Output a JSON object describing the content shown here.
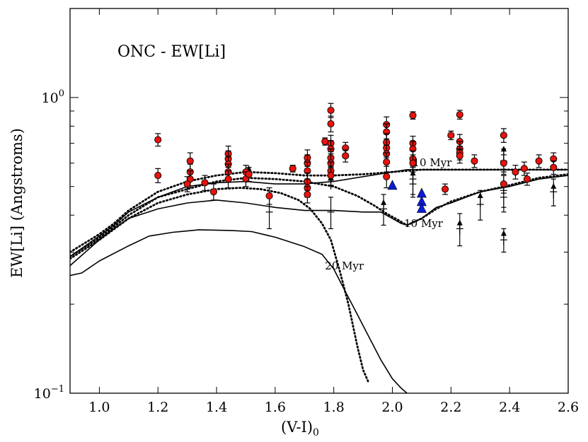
{
  "chart_data": {
    "type": "scatter",
    "title": "ONC - EW[Li]",
    "xlabel": "(V-I)",
    "xlabel_sub": "0",
    "ylabel": "EW[Li] (Angstroms)",
    "xlim": [
      0.9,
      2.6
    ],
    "ylim": [
      0.1,
      2.0
    ],
    "yscale": "log",
    "x_ticks": [
      {
        "value": 1.0,
        "label": "1.0"
      },
      {
        "value": 1.2,
        "label": "1.2"
      },
      {
        "value": 1.4,
        "label": "1.4"
      },
      {
        "value": 1.6,
        "label": "1.6"
      },
      {
        "value": 1.8,
        "label": "1.8"
      },
      {
        "value": 2.0,
        "label": "2.0"
      },
      {
        "value": 2.2,
        "label": "2.2"
      },
      {
        "value": 2.4,
        "label": "2.4"
      },
      {
        "value": 2.6,
        "label": "2.6"
      }
    ],
    "y_ticks": [
      {
        "value": 0.1,
        "base": "10",
        "exp": "−1"
      },
      {
        "value": 1.0,
        "base": "10",
        "exp": "0"
      }
    ],
    "model_curves": [
      {
        "name": "Li model 20 Myr (solid)",
        "style": "solid",
        "x": [
          0.9,
          0.94,
          1.0,
          1.1,
          1.17,
          1.25,
          1.34,
          1.45,
          1.52,
          1.6,
          1.7,
          1.76,
          1.8,
          1.84,
          1.88,
          1.92,
          1.96,
          2.0,
          2.03,
          2.05
        ],
        "y": [
          0.25,
          0.255,
          0.28,
          0.315,
          0.34,
          0.35,
          0.357,
          0.355,
          0.352,
          0.337,
          0.313,
          0.295,
          0.263,
          0.22,
          0.185,
          0.155,
          0.13,
          0.112,
          0.104,
          0.1
        ]
      },
      {
        "name": "Li model 20 Myr (dotted)",
        "style": "dotted",
        "x": [
          0.9,
          1.0,
          1.1,
          1.2,
          1.3,
          1.4,
          1.48,
          1.55,
          1.62,
          1.68,
          1.72,
          1.76,
          1.79,
          1.82,
          1.85,
          1.88,
          1.9,
          1.92
        ],
        "y": [
          0.285,
          0.33,
          0.39,
          0.44,
          0.47,
          0.49,
          0.495,
          0.49,
          0.475,
          0.45,
          0.42,
          0.375,
          0.33,
          0.26,
          0.2,
          0.145,
          0.12,
          0.108
        ]
      },
      {
        "name": "Li model 10 Myr (solid)",
        "style": "solid",
        "x": [
          0.9,
          1.0,
          1.05,
          1.1,
          1.2,
          1.3,
          1.4,
          1.5,
          1.6,
          1.7,
          1.8,
          1.9,
          1.96,
          2.0,
          2.03,
          2.05,
          2.1,
          2.15,
          2.2,
          2.3,
          2.4,
          2.5,
          2.6
        ],
        "y": [
          0.27,
          0.33,
          0.36,
          0.39,
          0.42,
          0.44,
          0.45,
          0.44,
          0.425,
          0.415,
          0.415,
          0.41,
          0.41,
          0.39,
          0.375,
          0.37,
          0.39,
          0.425,
          0.44,
          0.48,
          0.5,
          0.53,
          0.545
        ]
      },
      {
        "name": "Li model 10 Myr (dotted)",
        "style": "dotted",
        "x": [
          0.9,
          1.0,
          1.05,
          1.1,
          1.2,
          1.3,
          1.4,
          1.5,
          1.6,
          1.7,
          1.8,
          1.88,
          1.94,
          1.98,
          2.02,
          2.05,
          2.1,
          2.15,
          2.2,
          2.3,
          2.4,
          2.5,
          2.6
        ],
        "y": [
          0.29,
          0.335,
          0.365,
          0.4,
          0.46,
          0.49,
          0.52,
          0.535,
          0.53,
          0.52,
          0.5,
          0.465,
          0.43,
          0.405,
          0.385,
          0.37,
          0.39,
          0.42,
          0.445,
          0.48,
          0.505,
          0.535,
          0.55
        ]
      },
      {
        "name": "Li model 5 Myr (solid)",
        "style": "solid",
        "x": [
          0.9,
          1.0,
          1.05,
          1.1,
          1.2,
          1.3,
          1.4,
          1.5,
          1.6,
          1.7,
          1.8,
          1.9,
          2.0,
          2.05,
          2.1,
          2.2,
          2.3,
          2.4,
          2.5,
          2.6
        ],
        "y": [
          0.29,
          0.34,
          0.37,
          0.41,
          0.46,
          0.5,
          0.515,
          0.52,
          0.51,
          0.51,
          0.52,
          0.54,
          0.56,
          0.57,
          0.57,
          0.57,
          0.57,
          0.57,
          0.57,
          0.57
        ]
      },
      {
        "name": "Li model 5 Myr (dotted)",
        "style": "dotted",
        "x": [
          0.9,
          1.0,
          1.05,
          1.1,
          1.2,
          1.3,
          1.4,
          1.5,
          1.6,
          1.7,
          1.8,
          1.9,
          2.0,
          2.05,
          2.1,
          2.2,
          2.3,
          2.4,
          2.5,
          2.6
        ],
        "y": [
          0.3,
          0.345,
          0.375,
          0.415,
          0.48,
          0.52,
          0.545,
          0.56,
          0.555,
          0.545,
          0.545,
          0.55,
          0.56,
          0.565,
          0.57,
          0.57,
          0.57,
          0.57,
          0.57,
          0.57
        ]
      }
    ],
    "annotations": [
      {
        "text": "10 Myr",
        "x": 2.07,
        "y": 0.585
      },
      {
        "text": "10 Myr",
        "x": 2.04,
        "y": 0.365
      },
      {
        "text": "20 Myr",
        "x": 1.77,
        "y": 0.262
      }
    ],
    "series_detections": {
      "name": "EW[Li] detections (red circles)",
      "color": "#e8130c",
      "points": [
        {
          "x": 1.2,
          "y": 0.72,
          "err": 0.035
        },
        {
          "x": 1.2,
          "y": 0.545,
          "err": 0.03
        },
        {
          "x": 1.31,
          "y": 0.61,
          "err": 0.04
        },
        {
          "x": 1.31,
          "y": 0.56,
          "err": 0.035
        },
        {
          "x": 1.31,
          "y": 0.53,
          "err": 0.035
        },
        {
          "x": 1.3,
          "y": 0.51,
          "err": 0.03
        },
        {
          "x": 1.36,
          "y": 0.515,
          "err": 0.03
        },
        {
          "x": 1.39,
          "y": 0.48,
          "err": 0.03
        },
        {
          "x": 1.44,
          "y": 0.645,
          "err": 0.04
        },
        {
          "x": 1.44,
          "y": 0.62,
          "err": 0.04
        },
        {
          "x": 1.44,
          "y": 0.595,
          "err": 0.035
        },
        {
          "x": 1.44,
          "y": 0.56,
          "err": 0.035
        },
        {
          "x": 1.44,
          "y": 0.53,
          "err": 0.035
        },
        {
          "x": 1.5,
          "y": 0.56,
          "err": 0.03
        },
        {
          "x": 1.5,
          "y": 0.53,
          "err": 0.03
        },
        {
          "x": 1.51,
          "y": 0.55,
          "err": 0.03
        },
        {
          "x": 1.58,
          "y": 0.465,
          "err": 0.03
        },
        {
          "x": 1.66,
          "y": 0.575,
          "err": 0.015
        },
        {
          "x": 1.71,
          "y": 0.625,
          "err": 0.04
        },
        {
          "x": 1.71,
          "y": 0.6,
          "err": 0.04
        },
        {
          "x": 1.71,
          "y": 0.565,
          "err": 0.04
        },
        {
          "x": 1.71,
          "y": 0.52,
          "err": 0.035
        },
        {
          "x": 1.71,
          "y": 0.495,
          "err": 0.035
        },
        {
          "x": 1.71,
          "y": 0.47,
          "err": 0.03
        },
        {
          "x": 1.77,
          "y": 0.71,
          "err": 0.02
        },
        {
          "x": 1.79,
          "y": 0.905,
          "err": 0.05
        },
        {
          "x": 1.79,
          "y": 0.815,
          "err": 0.05
        },
        {
          "x": 1.79,
          "y": 0.7,
          "err": 0.045
        },
        {
          "x": 1.79,
          "y": 0.67,
          "err": 0.045
        },
        {
          "x": 1.79,
          "y": 0.625,
          "err": 0.045
        },
        {
          "x": 1.79,
          "y": 0.6,
          "err": 0.045
        },
        {
          "x": 1.79,
          "y": 0.565,
          "err": 0.04
        },
        {
          "x": 1.79,
          "y": 0.545,
          "err": 0.04
        },
        {
          "x": 1.84,
          "y": 0.675,
          "err": 0.03
        },
        {
          "x": 1.84,
          "y": 0.635,
          "err": 0.03
        },
        {
          "x": 1.98,
          "y": 0.81,
          "err": 0.05
        },
        {
          "x": 1.98,
          "y": 0.765,
          "err": 0.05
        },
        {
          "x": 1.98,
          "y": 0.705,
          "err": 0.05
        },
        {
          "x": 1.98,
          "y": 0.675,
          "err": 0.05
        },
        {
          "x": 1.98,
          "y": 0.645,
          "err": 0.045
        },
        {
          "x": 1.98,
          "y": 0.605,
          "err": 0.045
        },
        {
          "x": 1.98,
          "y": 0.54,
          "err": 0.045
        },
        {
          "x": 2.07,
          "y": 0.87,
          "err": 0.025
        },
        {
          "x": 2.07,
          "y": 0.7,
          "err": 0.04
        },
        {
          "x": 2.07,
          "y": 0.67,
          "err": 0.04
        },
        {
          "x": 2.07,
          "y": 0.62,
          "err": 0.04
        },
        {
          "x": 2.07,
          "y": 0.6,
          "err": 0.04
        },
        {
          "x": 2.18,
          "y": 0.49,
          "err": 0.02
        },
        {
          "x": 2.2,
          "y": 0.745,
          "err": 0.025
        },
        {
          "x": 2.23,
          "y": 0.875,
          "err": 0.03
        },
        {
          "x": 2.23,
          "y": 0.71,
          "err": 0.04
        },
        {
          "x": 2.23,
          "y": 0.67,
          "err": 0.04
        },
        {
          "x": 2.23,
          "y": 0.65,
          "err": 0.035
        },
        {
          "x": 2.23,
          "y": 0.635,
          "err": 0.035
        },
        {
          "x": 2.28,
          "y": 0.61,
          "err": 0.03
        },
        {
          "x": 2.38,
          "y": 0.745,
          "err": 0.04
        },
        {
          "x": 2.38,
          "y": 0.6,
          "err": 0.04
        },
        {
          "x": 2.38,
          "y": 0.51,
          "err": 0.035
        },
        {
          "x": 2.42,
          "y": 0.56,
          "err": 0.03
        },
        {
          "x": 2.45,
          "y": 0.575,
          "err": 0.03
        },
        {
          "x": 2.46,
          "y": 0.53,
          "err": 0.025
        },
        {
          "x": 2.5,
          "y": 0.61,
          "err": 0.03
        },
        {
          "x": 2.55,
          "y": 0.62,
          "err": 0.03
        },
        {
          "x": 2.55,
          "y": 0.58,
          "err": 0.03
        }
      ]
    },
    "series_lower_limits": {
      "name": "EW[Li] lower limits (black arrows)",
      "color": "#000000",
      "points": [
        {
          "x": 1.51,
          "y": 0.58
        },
        {
          "x": 1.79,
          "y": 0.54
        },
        {
          "x": 1.97,
          "y": 0.445
        },
        {
          "x": 2.07,
          "y": 0.6
        },
        {
          "x": 2.07,
          "y": 0.56
        },
        {
          "x": 2.23,
          "y": 0.68
        },
        {
          "x": 2.23,
          "y": 0.38
        },
        {
          "x": 2.3,
          "y": 0.47
        },
        {
          "x": 2.38,
          "y": 0.675
        },
        {
          "x": 2.38,
          "y": 0.52
        },
        {
          "x": 2.38,
          "y": 0.35
        },
        {
          "x": 2.55,
          "y": 0.505
        }
      ]
    },
    "series_blue": {
      "name": "Blue triangles",
      "color": "#0a1cd6",
      "points": [
        {
          "x": 2.0,
          "y": 0.505
        },
        {
          "x": 2.1,
          "y": 0.475
        },
        {
          "x": 2.1,
          "y": 0.445
        },
        {
          "x": 2.1,
          "y": 0.422
        }
      ]
    },
    "series_crosses": {
      "name": "Upper-limit crosses (black)",
      "color": "#000000",
      "points": [
        {
          "x": 1.58,
          "y": 0.41,
          "err": 0.05
        },
        {
          "x": 1.79,
          "y": 0.41,
          "err": 0.05
        },
        {
          "x": 1.97,
          "y": 0.42,
          "err": 0.05
        },
        {
          "x": 2.07,
          "y": 0.53,
          "err": 0.06
        },
        {
          "x": 2.07,
          "y": 0.51,
          "err": 0.05
        },
        {
          "x": 2.23,
          "y": 0.36,
          "err": 0.045
        },
        {
          "x": 2.3,
          "y": 0.435,
          "err": 0.05
        },
        {
          "x": 2.38,
          "y": 0.61,
          "err": 0.06
        },
        {
          "x": 2.38,
          "y": 0.485,
          "err": 0.06
        },
        {
          "x": 2.38,
          "y": 0.46,
          "err": 0.05
        },
        {
          "x": 2.38,
          "y": 0.33,
          "err": 0.03
        },
        {
          "x": 2.55,
          "y": 0.48,
          "err": 0.05
        }
      ]
    }
  }
}
